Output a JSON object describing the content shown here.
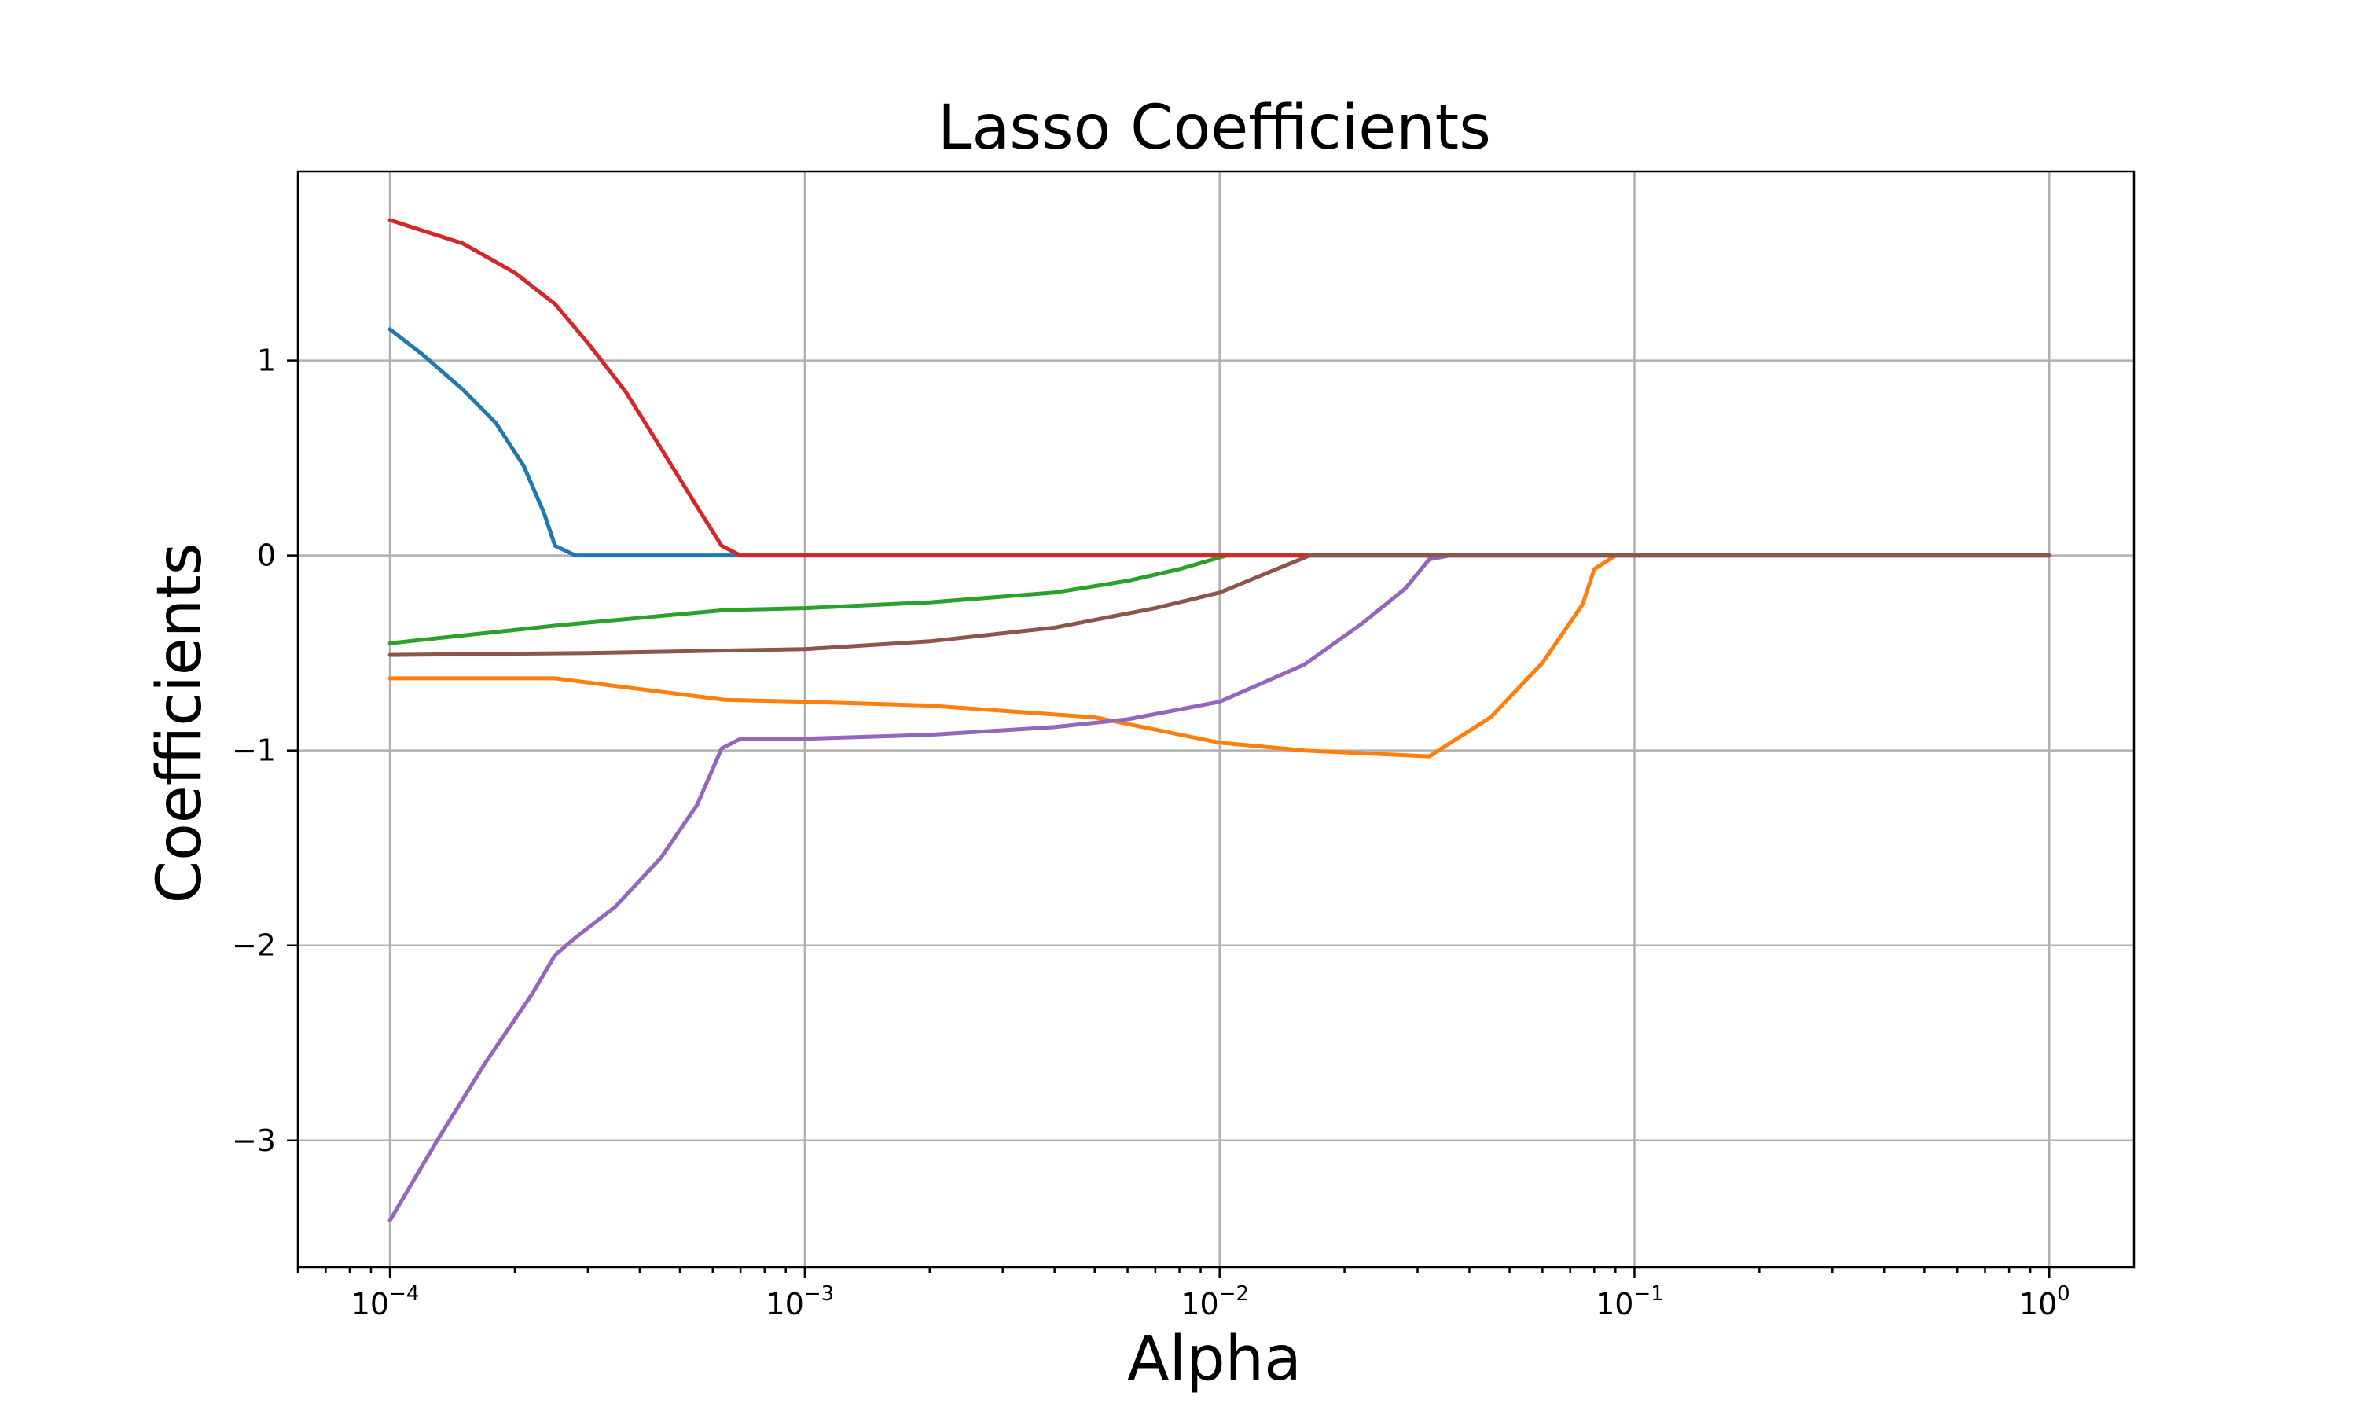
{
  "chart_data": {
    "type": "line",
    "title": "Lasso Coefficients",
    "xlabel": "Alpha",
    "ylabel": "Coefficients",
    "xscale": "log",
    "xlim": [
      6e-05,
      1.6
    ],
    "ylim": [
      -3.65,
      1.97
    ],
    "grid": true,
    "legend": "none",
    "x_ticks": [
      {
        "value": 0.0001,
        "base": "10",
        "exp": "−4"
      },
      {
        "value": 0.001,
        "base": "10",
        "exp": "−3"
      },
      {
        "value": 0.01,
        "base": "10",
        "exp": "−2"
      },
      {
        "value": 0.1,
        "base": "10",
        "exp": "−1"
      },
      {
        "value": 1,
        "base": "10",
        "exp": "0"
      }
    ],
    "y_ticks": [
      {
        "value": 1,
        "label": "1"
      },
      {
        "value": 0,
        "label": "0"
      },
      {
        "value": -1,
        "label": "−1"
      },
      {
        "value": -2,
        "label": "−2"
      },
      {
        "value": -3,
        "label": "−3"
      }
    ],
    "series": [
      {
        "color": "#1f77b4",
        "points": [
          [
            0.0001,
            1.16
          ],
          [
            0.00012,
            1.03
          ],
          [
            0.00015,
            0.85
          ],
          [
            0.00018,
            0.68
          ],
          [
            0.00021,
            0.46
          ],
          [
            0.000235,
            0.22
          ],
          [
            0.00025,
            0.05
          ],
          [
            0.00028,
            0.0
          ],
          [
            0.0007,
            0.0
          ],
          [
            1,
            0.0
          ]
        ]
      },
      {
        "color": "#ff7f0e",
        "points": [
          [
            0.0001,
            -0.63
          ],
          [
            0.00025,
            -0.63
          ],
          [
            0.00064,
            -0.74
          ],
          [
            0.001,
            -0.75
          ],
          [
            0.002,
            -0.77
          ],
          [
            0.005,
            -0.83
          ],
          [
            0.01,
            -0.96
          ],
          [
            0.016,
            -1.0
          ],
          [
            0.032,
            -1.03
          ],
          [
            0.045,
            -0.83
          ],
          [
            0.06,
            -0.55
          ],
          [
            0.075,
            -0.25
          ],
          [
            0.08,
            -0.07
          ],
          [
            0.09,
            0.0
          ],
          [
            1,
            0.0
          ]
        ]
      },
      {
        "color": "#2ca02c",
        "points": [
          [
            0.0001,
            -0.45
          ],
          [
            0.00025,
            -0.36
          ],
          [
            0.00064,
            -0.28
          ],
          [
            0.001,
            -0.27
          ],
          [
            0.002,
            -0.24
          ],
          [
            0.004,
            -0.19
          ],
          [
            0.006,
            -0.13
          ],
          [
            0.008,
            -0.07
          ],
          [
            0.0104,
            0.0
          ],
          [
            1,
            0.0
          ]
        ]
      },
      {
        "color": "#d62728",
        "points": [
          [
            0.0001,
            1.72
          ],
          [
            0.00015,
            1.6
          ],
          [
            0.0002,
            1.45
          ],
          [
            0.00025,
            1.29
          ],
          [
            0.0003,
            1.09
          ],
          [
            0.00037,
            0.84
          ],
          [
            0.00045,
            0.55
          ],
          [
            0.00055,
            0.25
          ],
          [
            0.00063,
            0.05
          ],
          [
            0.0007,
            0.0
          ],
          [
            1,
            0.0
          ]
        ]
      },
      {
        "color": "#9467bd",
        "points": [
          [
            0.0001,
            -3.41
          ],
          [
            0.00013,
            -3.0
          ],
          [
            0.00017,
            -2.6
          ],
          [
            0.00022,
            -2.25
          ],
          [
            0.00025,
            -2.05
          ],
          [
            0.00028,
            -1.96
          ],
          [
            0.00035,
            -1.8
          ],
          [
            0.00045,
            -1.55
          ],
          [
            0.00055,
            -1.28
          ],
          [
            0.00063,
            -0.99
          ],
          [
            0.0007,
            -0.94
          ],
          [
            0.001,
            -0.94
          ],
          [
            0.002,
            -0.92
          ],
          [
            0.004,
            -0.88
          ],
          [
            0.006,
            -0.84
          ],
          [
            0.01,
            -0.75
          ],
          [
            0.016,
            -0.56
          ],
          [
            0.022,
            -0.35
          ],
          [
            0.028,
            -0.17
          ],
          [
            0.032,
            -0.02
          ],
          [
            0.036,
            0.0
          ],
          [
            1,
            0.0
          ]
        ]
      },
      {
        "color": "#8c564b",
        "points": [
          [
            0.0001,
            -0.51
          ],
          [
            0.0003,
            -0.5
          ],
          [
            0.001,
            -0.48
          ],
          [
            0.002,
            -0.44
          ],
          [
            0.004,
            -0.37
          ],
          [
            0.007,
            -0.27
          ],
          [
            0.01,
            -0.19
          ],
          [
            0.013,
            -0.09
          ],
          [
            0.0165,
            0.0
          ],
          [
            1,
            0.0
          ]
        ]
      }
    ]
  }
}
